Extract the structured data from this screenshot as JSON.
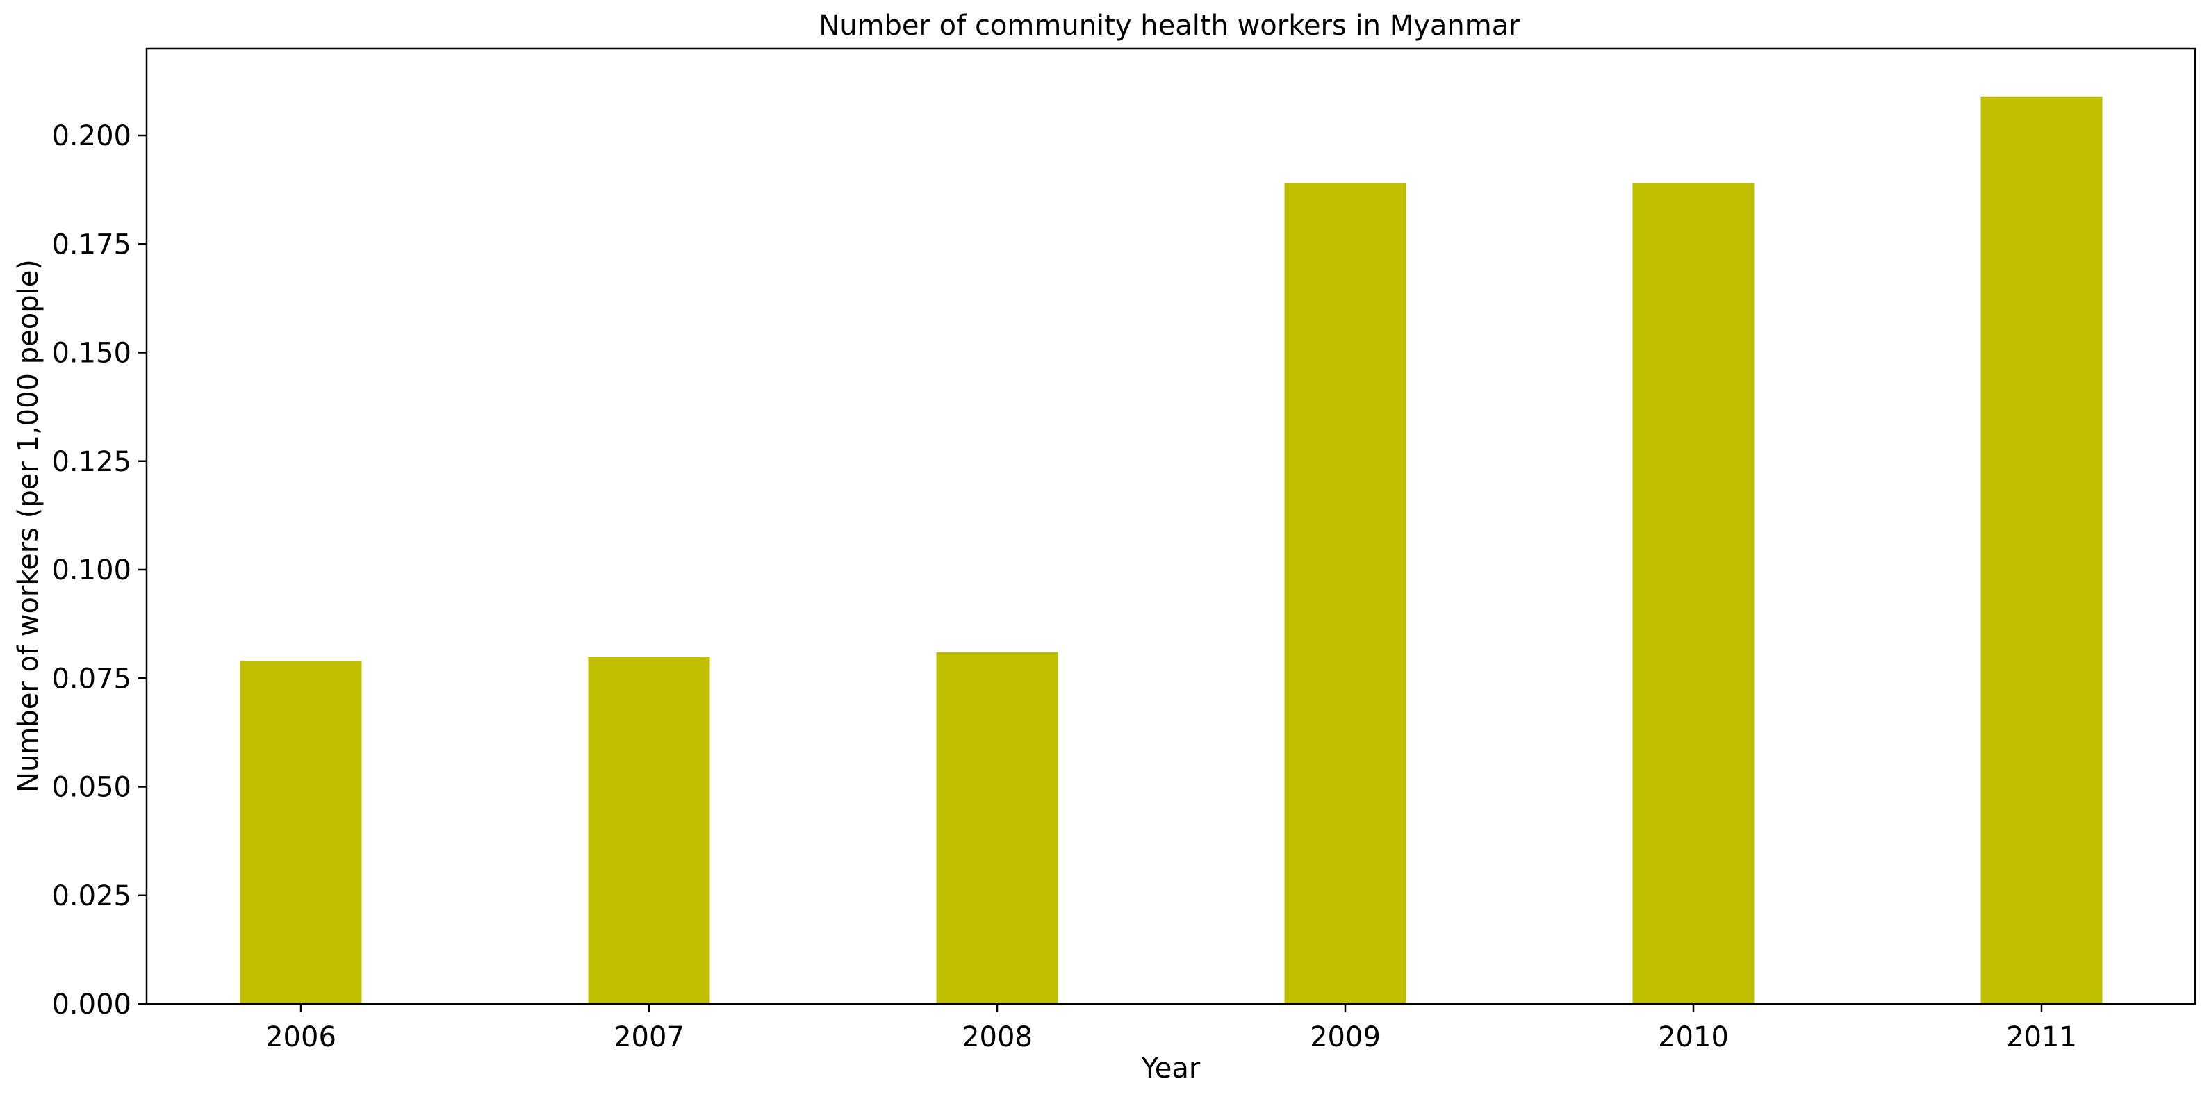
{
  "chart_data": {
    "type": "bar",
    "title": "Number of community health workers in Myanmar",
    "xlabel": "Year",
    "ylabel": "Number of workers (per 1,000 people)",
    "categories": [
      "2006",
      "2007",
      "2008",
      "2009",
      "2010",
      "2011"
    ],
    "values": [
      0.079,
      0.08,
      0.081,
      0.189,
      0.189,
      0.209
    ],
    "ylim": [
      0,
      0.22
    ],
    "yticks": [
      "0.000",
      "0.025",
      "0.050",
      "0.075",
      "0.100",
      "0.125",
      "0.150",
      "0.175",
      "0.200"
    ],
    "grid": false,
    "legend": "none",
    "colors": {
      "bar": "#bfbf00",
      "axis": "#000000",
      "background": "#ffffff"
    }
  }
}
